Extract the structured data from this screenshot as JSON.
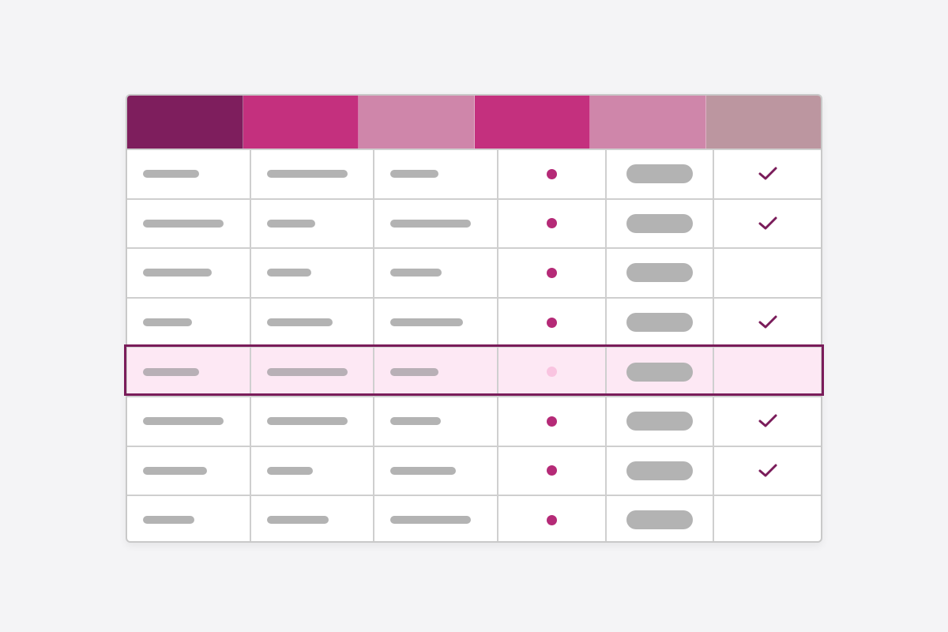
{
  "colors": {
    "background": "#f4f4f6",
    "grid_line": "#cfcfcf",
    "placeholder_bar": "#b3b3b3",
    "status_dot": "#b52a77",
    "status_dot_faded": "#f9c4e0",
    "checkmark": "#7a1c5a",
    "selected_row_fill": "#fde8f4",
    "selected_row_border": "#7a1c5a"
  },
  "table": {
    "header_colors": [
      "#7e1e5d",
      "#c4307e",
      "#cf86aa",
      "#c4307e",
      "#cf86aa",
      "#bc96a0"
    ],
    "selected_row_index": 4,
    "rows": [
      {
        "bars": [
          0.48,
          0.69,
          0.41
        ],
        "dot": true,
        "check": true
      },
      {
        "bars": [
          0.69,
          0.41,
          0.69
        ],
        "dot": true,
        "check": true
      },
      {
        "bars": [
          0.59,
          0.38,
          0.44
        ],
        "dot": true,
        "check": false
      },
      {
        "bars": [
          0.42,
          0.56,
          0.62
        ],
        "dot": true,
        "check": true
      },
      {
        "bars": [
          0.48,
          0.69,
          0.41
        ],
        "dot": true,
        "check": false
      },
      {
        "bars": [
          0.69,
          0.69,
          0.43
        ],
        "dot": true,
        "check": true
      },
      {
        "bars": [
          0.55,
          0.39,
          0.56
        ],
        "dot": true,
        "check": true
      },
      {
        "bars": [
          0.44,
          0.53,
          0.69
        ],
        "dot": true,
        "check": false
      }
    ]
  },
  "icons": {
    "check": "checkmark-icon",
    "status": "status-dot-icon",
    "tag": "tag-pill"
  }
}
